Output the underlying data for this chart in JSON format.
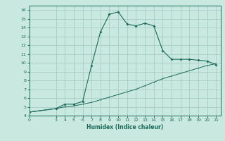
{
  "xlabel": "Humidex (Indice chaleur)",
  "background_color": "#c8e8e0",
  "grid_color": "#a0c8bf",
  "line_color": "#1a6b5a",
  "xlim": [
    0,
    21.5
  ],
  "ylim": [
    4,
    16.5
  ],
  "xticks": [
    0,
    3,
    4,
    5,
    6,
    7,
    8,
    9,
    10,
    11,
    12,
    13,
    14,
    15,
    16,
    17,
    18,
    19,
    20,
    21
  ],
  "yticks": [
    4,
    5,
    6,
    7,
    8,
    9,
    10,
    11,
    12,
    13,
    14,
    15,
    16
  ],
  "line1_x": [
    0,
    3,
    4,
    5,
    6,
    7,
    8,
    9,
    10,
    11,
    12,
    13,
    14,
    15,
    16,
    17,
    18,
    19,
    20,
    21
  ],
  "line1_y": [
    4.4,
    4.8,
    5.3,
    5.3,
    5.6,
    9.7,
    13.5,
    15.5,
    15.8,
    14.4,
    14.2,
    14.5,
    14.2,
    11.4,
    10.4,
    10.4,
    10.4,
    10.3,
    10.2,
    9.8
  ],
  "line2_x": [
    0,
    3,
    4,
    5,
    6,
    7,
    8,
    9,
    10,
    11,
    12,
    13,
    14,
    15,
    16,
    17,
    18,
    19,
    20,
    21
  ],
  "line2_y": [
    4.4,
    4.8,
    5.0,
    5.1,
    5.3,
    5.5,
    5.8,
    6.1,
    6.4,
    6.7,
    7.0,
    7.4,
    7.8,
    8.2,
    8.5,
    8.8,
    9.1,
    9.4,
    9.7,
    9.9
  ]
}
